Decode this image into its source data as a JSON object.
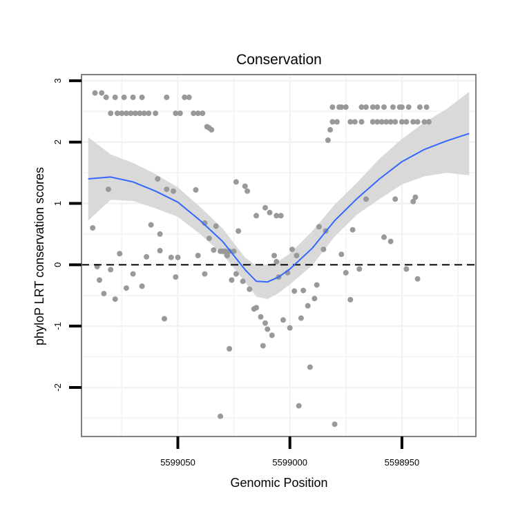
{
  "chart_data": {
    "type": "scatter",
    "title": "Conservation",
    "xlabel": "Genomic Position",
    "ylabel": "phyloP LRT conservation scores",
    "x_reversed": true,
    "xlim": [
      5599093,
      5598917
    ],
    "ylim": [
      -2.8,
      3.1
    ],
    "x_ticks": [
      5599050,
      5599000,
      5598950
    ],
    "x_tick_labels": [
      "5599050",
      "5599000",
      "5598950"
    ],
    "y_ticks": [
      -2,
      -1,
      0,
      1,
      2,
      3
    ],
    "y_tick_labels": [
      "-2",
      "-1",
      "0",
      "1",
      "2",
      "3"
    ],
    "reference_line": {
      "y": 0,
      "style": "dashed"
    },
    "grid": true,
    "colors": {
      "points": "#999999",
      "smooth_line": "#3366ff",
      "confidence_band": "#d9d9d9",
      "panel_border": "#808080",
      "gridline": "#f2f2f2",
      "reference_line": "#000000"
    },
    "series": [
      {
        "name": "scores",
        "points": [
          [
            5599087,
            2.8
          ],
          [
            5599084,
            2.8
          ],
          [
            5599082,
            2.73
          ],
          [
            5599078,
            2.73
          ],
          [
            5599074,
            2.73
          ],
          [
            5599070,
            2.73
          ],
          [
            5599066,
            2.73
          ],
          [
            5599055,
            2.73
          ],
          [
            5599047,
            2.73
          ],
          [
            5599045,
            2.73
          ],
          [
            5599080,
            2.47
          ],
          [
            5599077,
            2.47
          ],
          [
            5599075,
            2.47
          ],
          [
            5599073,
            2.47
          ],
          [
            5599071,
            2.47
          ],
          [
            5599069,
            2.47
          ],
          [
            5599067,
            2.47
          ],
          [
            5599065,
            2.47
          ],
          [
            5599063,
            2.47
          ],
          [
            5599060,
            2.47
          ],
          [
            5599051,
            2.47
          ],
          [
            5599049,
            2.47
          ],
          [
            5599043,
            2.47
          ],
          [
            5599041,
            2.47
          ],
          [
            5599039,
            2.47
          ],
          [
            5599037,
            2.25
          ],
          [
            5599036,
            2.23
          ],
          [
            5599035,
            2.2
          ],
          [
            5599081,
            1.23
          ],
          [
            5599059,
            1.4
          ],
          [
            5599055,
            1.23
          ],
          [
            5599052,
            1.2
          ],
          [
            5599042,
            1.22
          ],
          [
            5599024,
            1.35
          ],
          [
            5599020,
            1.28
          ],
          [
            5599019,
            1.2
          ],
          [
            5599088,
            0.6
          ],
          [
            5599062,
            0.65
          ],
          [
            5599058,
            0.5
          ],
          [
            5599038,
            0.68
          ],
          [
            5599033,
            0.63
          ],
          [
            5599023,
            0.55
          ],
          [
            5599011,
            0.93
          ],
          [
            5599009,
            0.85
          ],
          [
            5599006,
            0.8
          ],
          [
            5599004,
            0.8
          ],
          [
            5599015,
            0.8
          ],
          [
            5599086,
            -0.03
          ],
          [
            5599085,
            -0.25
          ],
          [
            5599083,
            -0.47
          ],
          [
            5599080,
            -0.08
          ],
          [
            5599078,
            -0.56
          ],
          [
            5599076,
            0.18
          ],
          [
            5599073,
            -0.38
          ],
          [
            5599070,
            -0.15
          ],
          [
            5599066,
            -0.35
          ],
          [
            5599064,
            0.13
          ],
          [
            5599058,
            0.23
          ],
          [
            5599056,
            -0.88
          ],
          [
            5599053,
            0.12
          ],
          [
            5599051,
            -0.2
          ],
          [
            5599050,
            0.12
          ],
          [
            5599041,
            0.15
          ],
          [
            5599038,
            -0.15
          ],
          [
            5599036,
            0.43
          ],
          [
            5599034,
            0.24
          ],
          [
            5599031,
            0.22
          ],
          [
            5599030,
            0.22
          ],
          [
            5599029,
            0.22
          ],
          [
            5599027,
            0.22
          ],
          [
            5599025,
            0.22
          ],
          [
            5599026,
            -0.25
          ],
          [
            5599024,
            -0.15
          ],
          [
            5599021,
            -0.27
          ],
          [
            5599018,
            -0.4
          ],
          [
            5599016,
            -0.72
          ],
          [
            5599015,
            -0.7
          ],
          [
            5599013,
            -0.85
          ],
          [
            5599012,
            -1.32
          ],
          [
            5599011,
            -0.95
          ],
          [
            5599010,
            -1.05
          ],
          [
            5599008,
            -1.15
          ],
          [
            5599006,
            0.05
          ],
          [
            5599005,
            -0.2
          ],
          [
            5599003,
            -0.9
          ],
          [
            5599001,
            -0.13
          ],
          [
            5599000,
            -1.03
          ],
          [
            5598999,
            0.25
          ],
          [
            5598998,
            -0.43
          ],
          [
            5598997,
            0.15
          ],
          [
            5598996,
            -2.3
          ],
          [
            5598995,
            -0.87
          ],
          [
            5598994,
            -0.42
          ],
          [
            5598992,
            -0.67
          ],
          [
            5598991,
            -1.67
          ],
          [
            5598989,
            -0.55
          ],
          [
            5598988,
            -0.33
          ],
          [
            5598987,
            0.62
          ],
          [
            5598985,
            0.25
          ],
          [
            5598984,
            0.55
          ],
          [
            5599031,
            -2.47
          ],
          [
            5599027,
            -1.37
          ],
          [
            5598980,
            -2.6
          ],
          [
            5599028,
            0.15
          ],
          [
            5599007,
            0.15
          ],
          [
            5598977,
            0.17
          ],
          [
            5598975,
            -0.13
          ],
          [
            5598973,
            -0.57
          ],
          [
            5598972,
            0.57
          ],
          [
            5598969,
            -0.07
          ],
          [
            5598966,
            1.07
          ],
          [
            5598958,
            0.45
          ],
          [
            5598955,
            0.38
          ],
          [
            5598953,
            1.07
          ],
          [
            5598948,
            -0.07
          ],
          [
            5598945,
            1.03
          ],
          [
            5598944,
            1.1
          ],
          [
            5598943,
            -0.23
          ],
          [
            5598983,
            2.03
          ],
          [
            5598982,
            2.2
          ],
          [
            5598981,
            2.33
          ],
          [
            5598979,
            2.33
          ],
          [
            5598981,
            2.57
          ],
          [
            5598978,
            2.57
          ],
          [
            5598977,
            2.57
          ],
          [
            5598975,
            2.57
          ],
          [
            5598968,
            2.57
          ],
          [
            5598966,
            2.57
          ],
          [
            5598963,
            2.57
          ],
          [
            5598961,
            2.57
          ],
          [
            5598958,
            2.57
          ],
          [
            5598954,
            2.57
          ],
          [
            5598951,
            2.57
          ],
          [
            5598950,
            2.57
          ],
          [
            5598947,
            2.57
          ],
          [
            5598942,
            2.57
          ],
          [
            5598939,
            2.57
          ],
          [
            5598973,
            2.33
          ],
          [
            5598971,
            2.33
          ],
          [
            5598968,
            2.33
          ],
          [
            5598963,
            2.33
          ],
          [
            5598961,
            2.33
          ],
          [
            5598959,
            2.33
          ],
          [
            5598957,
            2.33
          ],
          [
            5598955,
            2.33
          ],
          [
            5598953,
            2.33
          ],
          [
            5598950,
            2.33
          ],
          [
            5598948,
            2.33
          ],
          [
            5598945,
            2.33
          ],
          [
            5598943,
            2.33
          ],
          [
            5598940,
            2.33
          ],
          [
            5598938,
            2.33
          ]
        ]
      },
      {
        "name": "smooth_fit",
        "x": [
          5599090,
          5599080,
          5599070,
          5599060,
          5599050,
          5599040,
          5599030,
          5599020,
          5599015,
          5599010,
          5599005,
          5599000,
          5598990,
          5598980,
          5598970,
          5598960,
          5598950,
          5598940,
          5598930,
          5598920
        ],
        "values": [
          1.4,
          1.43,
          1.35,
          1.2,
          1.02,
          0.72,
          0.38,
          -0.08,
          -0.27,
          -0.28,
          -0.2,
          -0.07,
          0.27,
          0.72,
          1.08,
          1.4,
          1.68,
          1.88,
          2.02,
          2.14
        ]
      },
      {
        "name": "confidence_band",
        "x": [
          5599090,
          5599080,
          5599070,
          5599060,
          5599050,
          5599040,
          5599030,
          5599020,
          5599015,
          5599010,
          5599005,
          5599000,
          5598990,
          5598980,
          5598970,
          5598960,
          5598950,
          5598940,
          5598930,
          5598920
        ],
        "upper": [
          2.08,
          1.8,
          1.66,
          1.48,
          1.26,
          0.94,
          0.59,
          0.12,
          -0.02,
          0.0,
          0.06,
          0.18,
          0.55,
          0.98,
          1.34,
          1.73,
          2.05,
          2.32,
          2.54,
          2.82
        ],
        "lower": [
          0.72,
          1.06,
          1.04,
          0.92,
          0.78,
          0.5,
          0.17,
          -0.28,
          -0.52,
          -0.56,
          -0.46,
          -0.32,
          -0.01,
          0.46,
          0.82,
          1.07,
          1.31,
          1.44,
          1.5,
          1.46
        ]
      }
    ]
  }
}
